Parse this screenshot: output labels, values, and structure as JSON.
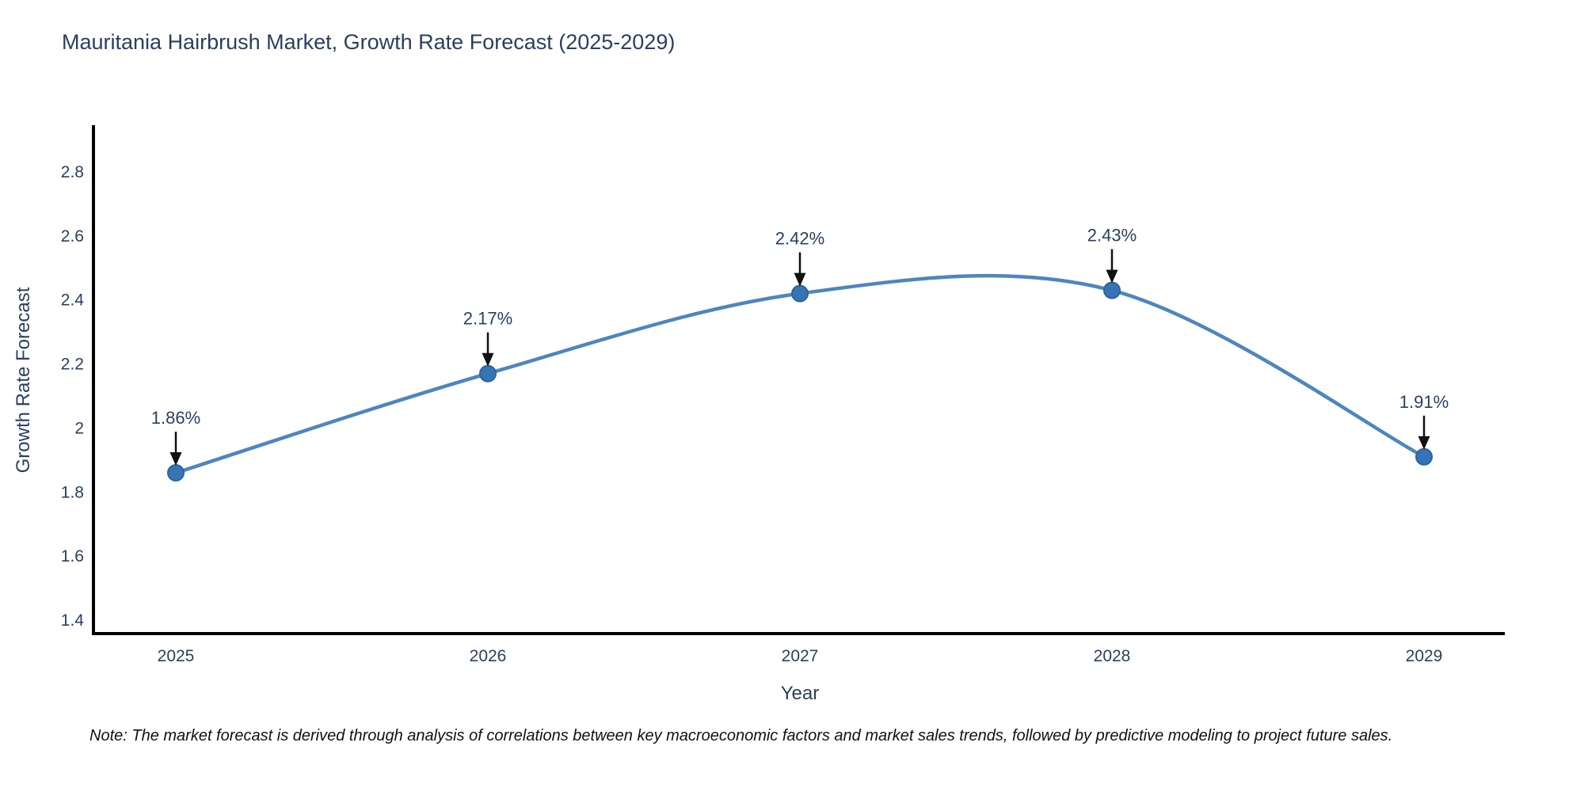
{
  "title": "Mauritania Hairbrush Market, Growth Rate Forecast (2025-2029)",
  "note": "Note: The market forecast is derived through analysis of correlations between key macroeconomic factors and market sales trends, followed by predictive modeling to project future sales.",
  "chart_data": {
    "type": "line",
    "title": "Mauritania Hairbrush Market, Growth Rate Forecast (2025-2029)",
    "xlabel": "Year",
    "ylabel": "Growth Rate Forecast",
    "x": [
      2025,
      2026,
      2027,
      2028,
      2029
    ],
    "values": [
      1.86,
      2.17,
      2.42,
      2.43,
      1.91
    ],
    "point_labels": [
      "1.86%",
      "2.17%",
      "2.42%",
      "2.43%",
      "1.91%"
    ],
    "yticks": [
      1.4,
      1.6,
      1.8,
      2,
      2.2,
      2.4,
      2.6,
      2.8
    ],
    "ylim": [
      1.355,
      2.945
    ],
    "line_shape": "spline",
    "grid": false,
    "legend": false,
    "colors": {
      "line": "#4d86bf",
      "marker": "#3674b3",
      "marker_edge": "#2e64a0",
      "axis": "#000000",
      "tick_text": "#2a3f5f",
      "annotation_text": "#2a3f5f",
      "annotation_arrow": "#111111"
    }
  }
}
